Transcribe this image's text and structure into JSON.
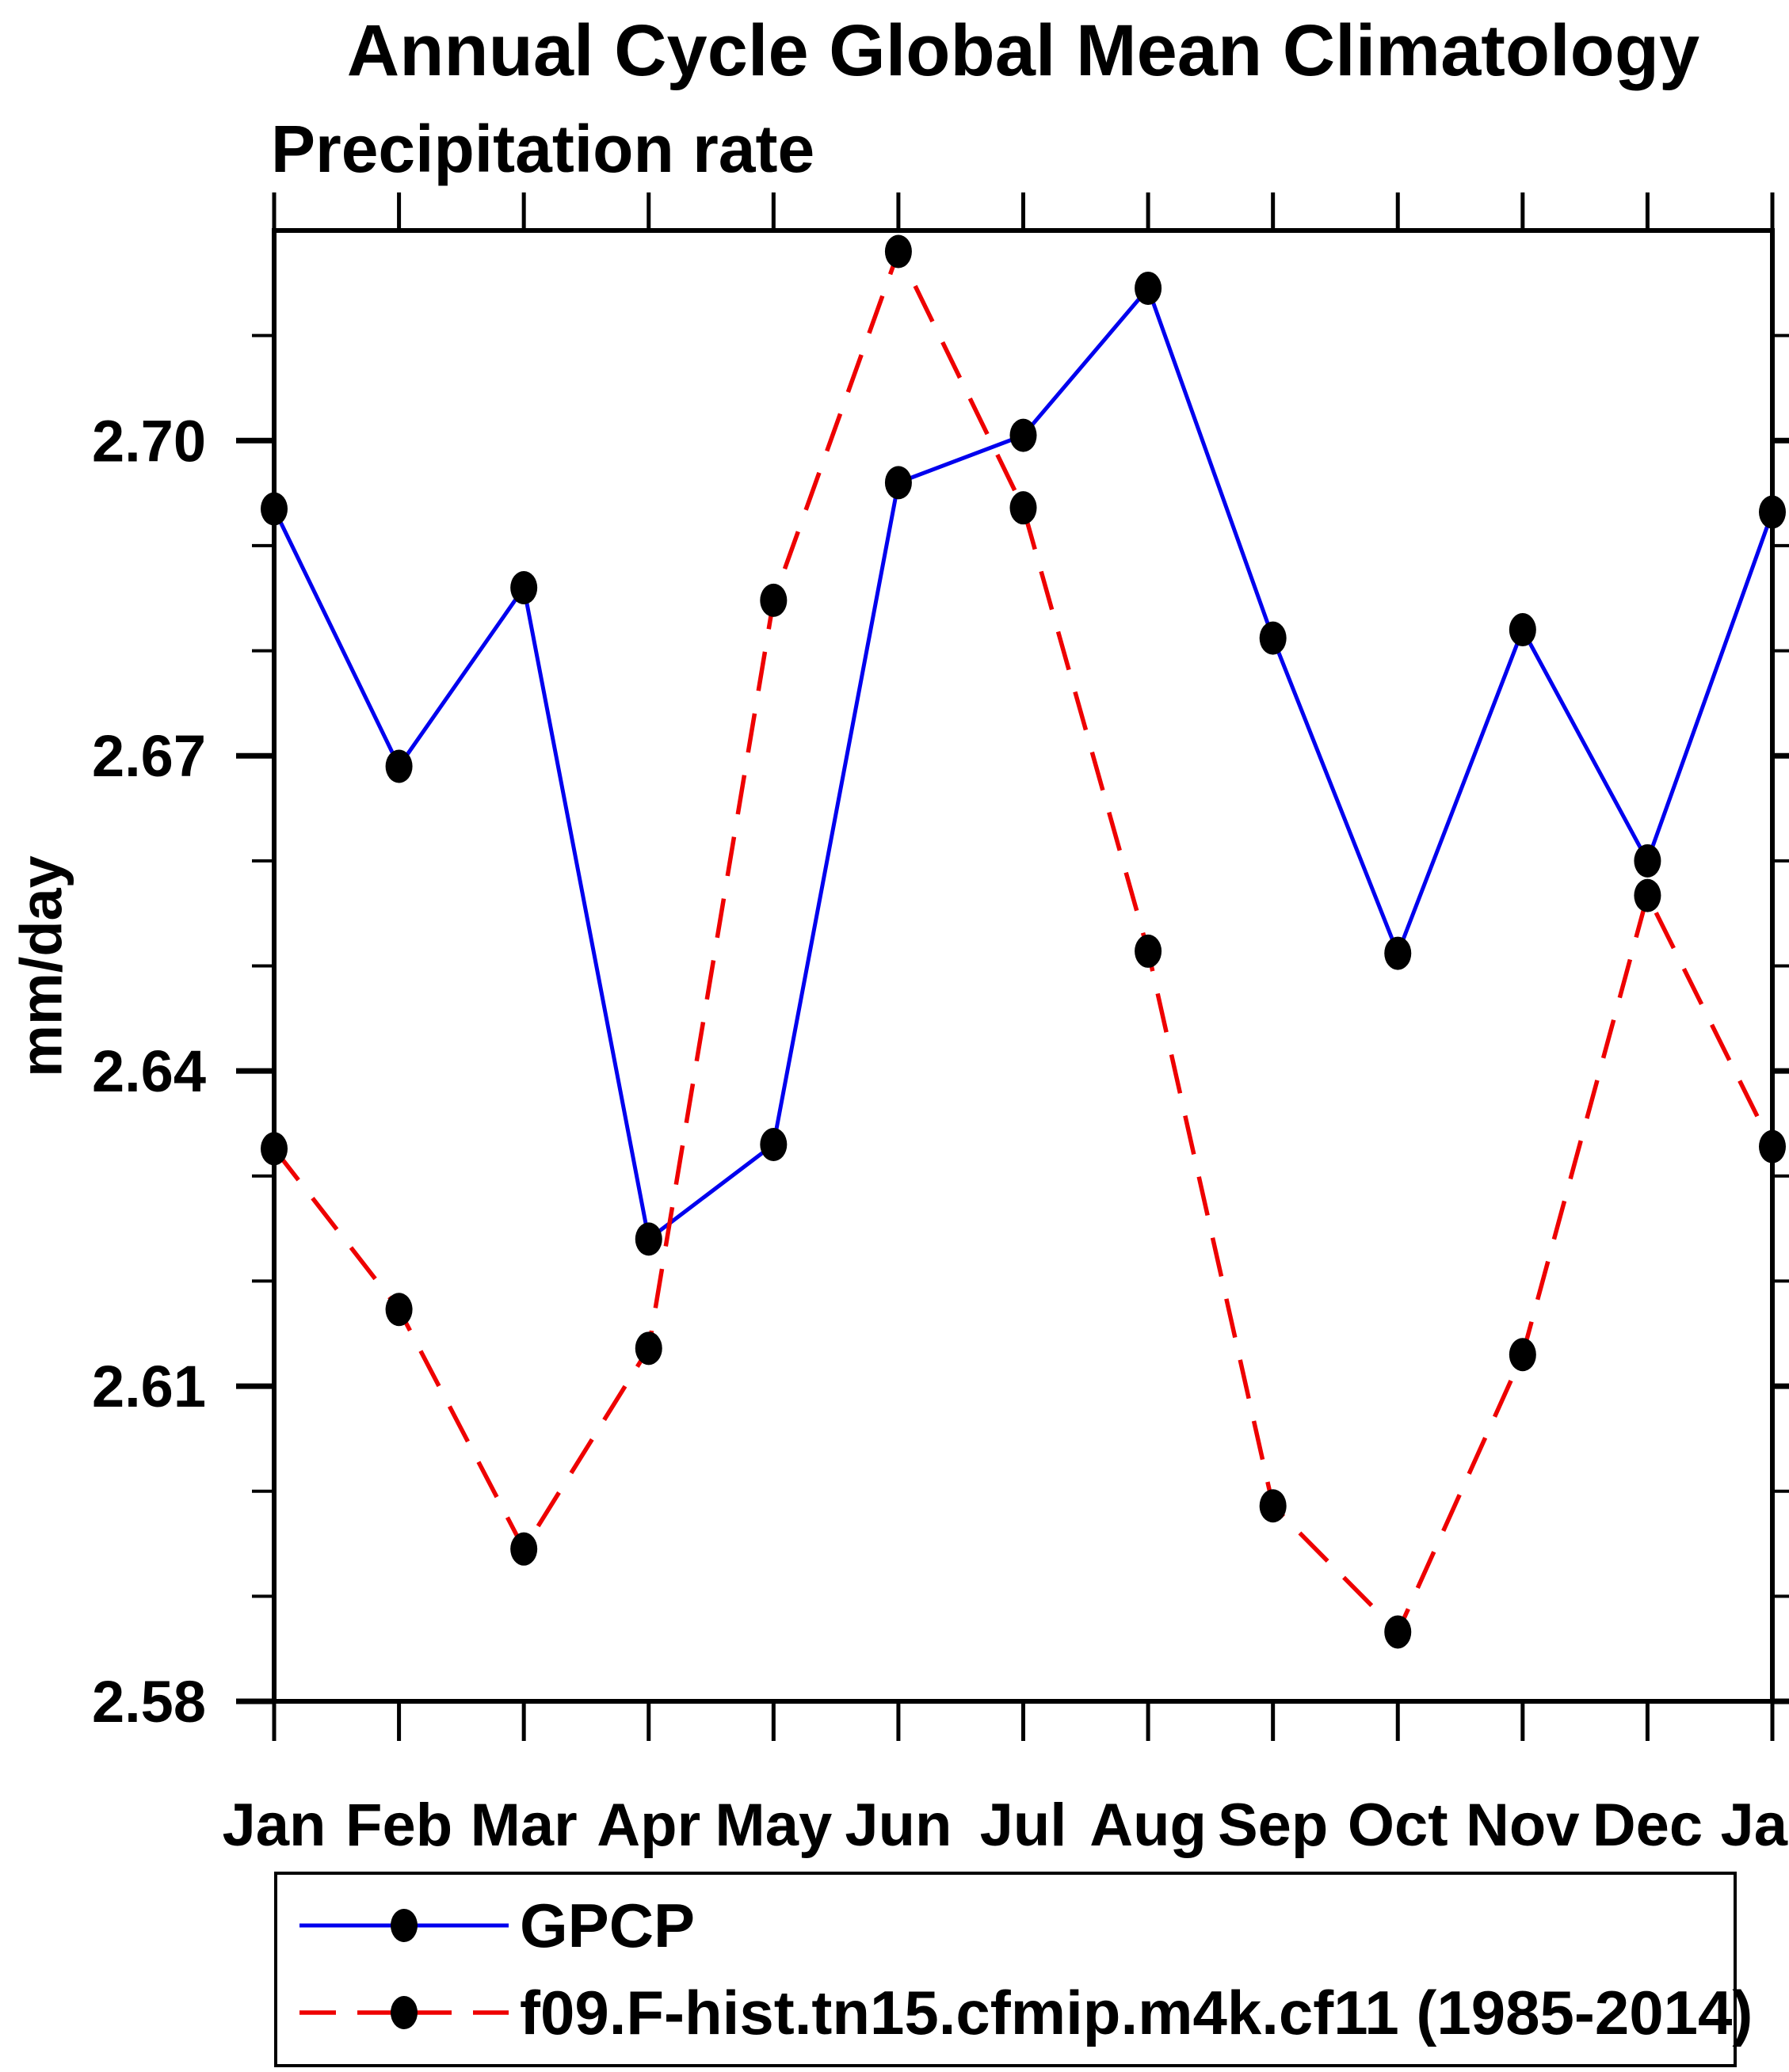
{
  "title": "Annual Cycle Global Mean Climatology",
  "subtitle": "Precipitation rate",
  "ylabel": "mm/day",
  "legend": {
    "entries": [
      {
        "label": "GPCP"
      },
      {
        "label": "f09.F-hist.tn15.cfmip.m4k.cf11 (1985-2014)"
      }
    ]
  },
  "chart_data": {
    "type": "line",
    "title": "Annual Cycle Global Mean Climatology",
    "subtitle": "Precipitation rate",
    "xlabel": "",
    "ylabel": "mm/day",
    "categories": [
      "Jan",
      "Feb",
      "Mar",
      "Apr",
      "May",
      "Jun",
      "Jul",
      "Aug",
      "Sep",
      "Oct",
      "Nov",
      "Dec",
      "Jan"
    ],
    "ylim": [
      2.58,
      2.72
    ],
    "ytick_major": [
      2.58,
      2.61,
      2.64,
      2.67,
      2.7
    ],
    "ytick_major_labels": [
      "2.58",
      "2.61",
      "2.64",
      "2.67",
      "2.70"
    ],
    "ytick_minor": [
      2.59,
      2.6,
      2.62,
      2.63,
      2.65,
      2.66,
      2.68,
      2.69,
      2.71
    ],
    "grid": false,
    "legend_position": "bottom",
    "marker": {
      "shape": "filled-circle",
      "color": "#000000"
    },
    "series": [
      {
        "name": "GPCP",
        "color": "#0000ee",
        "line_style": "solid",
        "values": [
          2.6935,
          2.669,
          2.686,
          2.624,
          2.633,
          2.696,
          2.7005,
          2.7145,
          2.6812,
          2.6512,
          2.682,
          2.66,
          2.6932
        ]
      },
      {
        "name": "f09.F-hist.tn15.cfmip.m4k.cf11 (1985-2014)",
        "color": "#ee0000",
        "line_style": "dashed",
        "values": [
          2.6326,
          2.6173,
          2.5945,
          2.6136,
          2.6848,
          2.718,
          2.6936,
          2.6514,
          2.5986,
          2.5866,
          2.613,
          2.6567,
          2.6328
        ]
      }
    ]
  }
}
